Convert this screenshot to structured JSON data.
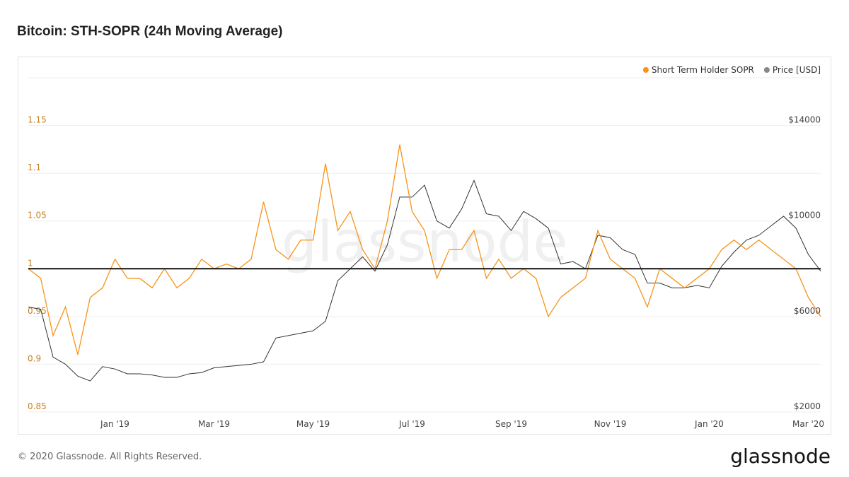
{
  "chart_data": {
    "type": "line",
    "title": "Bitcoin: STH-SOPR (24h Moving Average)",
    "footer": "© 2020 Glassnode. All Rights Reserved.",
    "logo": "glassnode",
    "watermark": "glassnode",
    "categories": [
      null,
      null,
      null,
      null,
      null,
      null,
      null,
      "Jan '19",
      null,
      null,
      null,
      null,
      null,
      null,
      null,
      "Mar '19",
      null,
      null,
      null,
      null,
      null,
      null,
      null,
      "May '19",
      null,
      null,
      null,
      null,
      null,
      null,
      null,
      "Jul '19",
      null,
      null,
      null,
      null,
      null,
      null,
      null,
      "Sep '19",
      null,
      null,
      null,
      null,
      null,
      null,
      null,
      "Nov '19",
      null,
      null,
      null,
      null,
      null,
      null,
      null,
      "Jan '20",
      null,
      null,
      null,
      null,
      null,
      null,
      null,
      "Mar '20",
      null
    ],
    "series": [
      {
        "name": "Short Term Holder SOPR",
        "color": "#f7931a",
        "axis": "y",
        "values": [
          1.0,
          0.99,
          0.93,
          0.96,
          0.91,
          0.97,
          0.98,
          1.01,
          0.99,
          0.99,
          0.98,
          1.0,
          0.98,
          0.99,
          1.01,
          1.0,
          1.005,
          1.0,
          1.01,
          1.07,
          1.02,
          1.01,
          1.03,
          1.03,
          1.11,
          1.04,
          1.06,
          1.02,
          1.0,
          1.05,
          1.13,
          1.06,
          1.04,
          0.99,
          1.02,
          1.02,
          1.04,
          0.99,
          1.01,
          0.99,
          1.0,
          0.99,
          0.95,
          0.97,
          0.98,
          0.99,
          1.04,
          1.01,
          1.0,
          0.99,
          0.96,
          1.0,
          0.99,
          0.98,
          0.99,
          1.0,
          1.02,
          1.03,
          1.02,
          1.03,
          1.02,
          1.01,
          1.0,
          0.97,
          0.95
        ]
      },
      {
        "name": "Price [USD]",
        "color": "#888888",
        "line_color": "#333333",
        "axis": "y2",
        "values": [
          6400,
          6300,
          4300,
          4000,
          3500,
          3300,
          3900,
          3800,
          3600,
          3600,
          3550,
          3450,
          3450,
          3600,
          3650,
          3850,
          3900,
          3950,
          4000,
          4100,
          5100,
          5200,
          5300,
          5400,
          5800,
          7500,
          8000,
          8500,
          7900,
          9000,
          11000,
          11000,
          11500,
          10000,
          9700,
          10500,
          11700,
          10300,
          10200,
          9600,
          10400,
          10100,
          9700,
          8200,
          8300,
          8000,
          9400,
          9300,
          8800,
          8600,
          7400,
          7400,
          7200,
          7200,
          7300,
          7200,
          8100,
          8700,
          9200,
          9400,
          9800,
          10200,
          9700,
          8600,
          7900
        ]
      }
    ],
    "ylim": [
      0.85,
      1.2
    ],
    "yticks": [
      0.85,
      0.9,
      0.95,
      1,
      1.05,
      1.1,
      1.15
    ],
    "y2lim": [
      2000,
      16000
    ],
    "y2ticks": [
      {
        "value": 2000,
        "label": "$2000"
      },
      {
        "value": 6000,
        "label": "$6000"
      },
      {
        "value": 10000,
        "label": "$10000"
      },
      {
        "value": 14000,
        "label": "$14000"
      }
    ],
    "reference_line": 1,
    "grid": true,
    "legend": "top-right"
  }
}
